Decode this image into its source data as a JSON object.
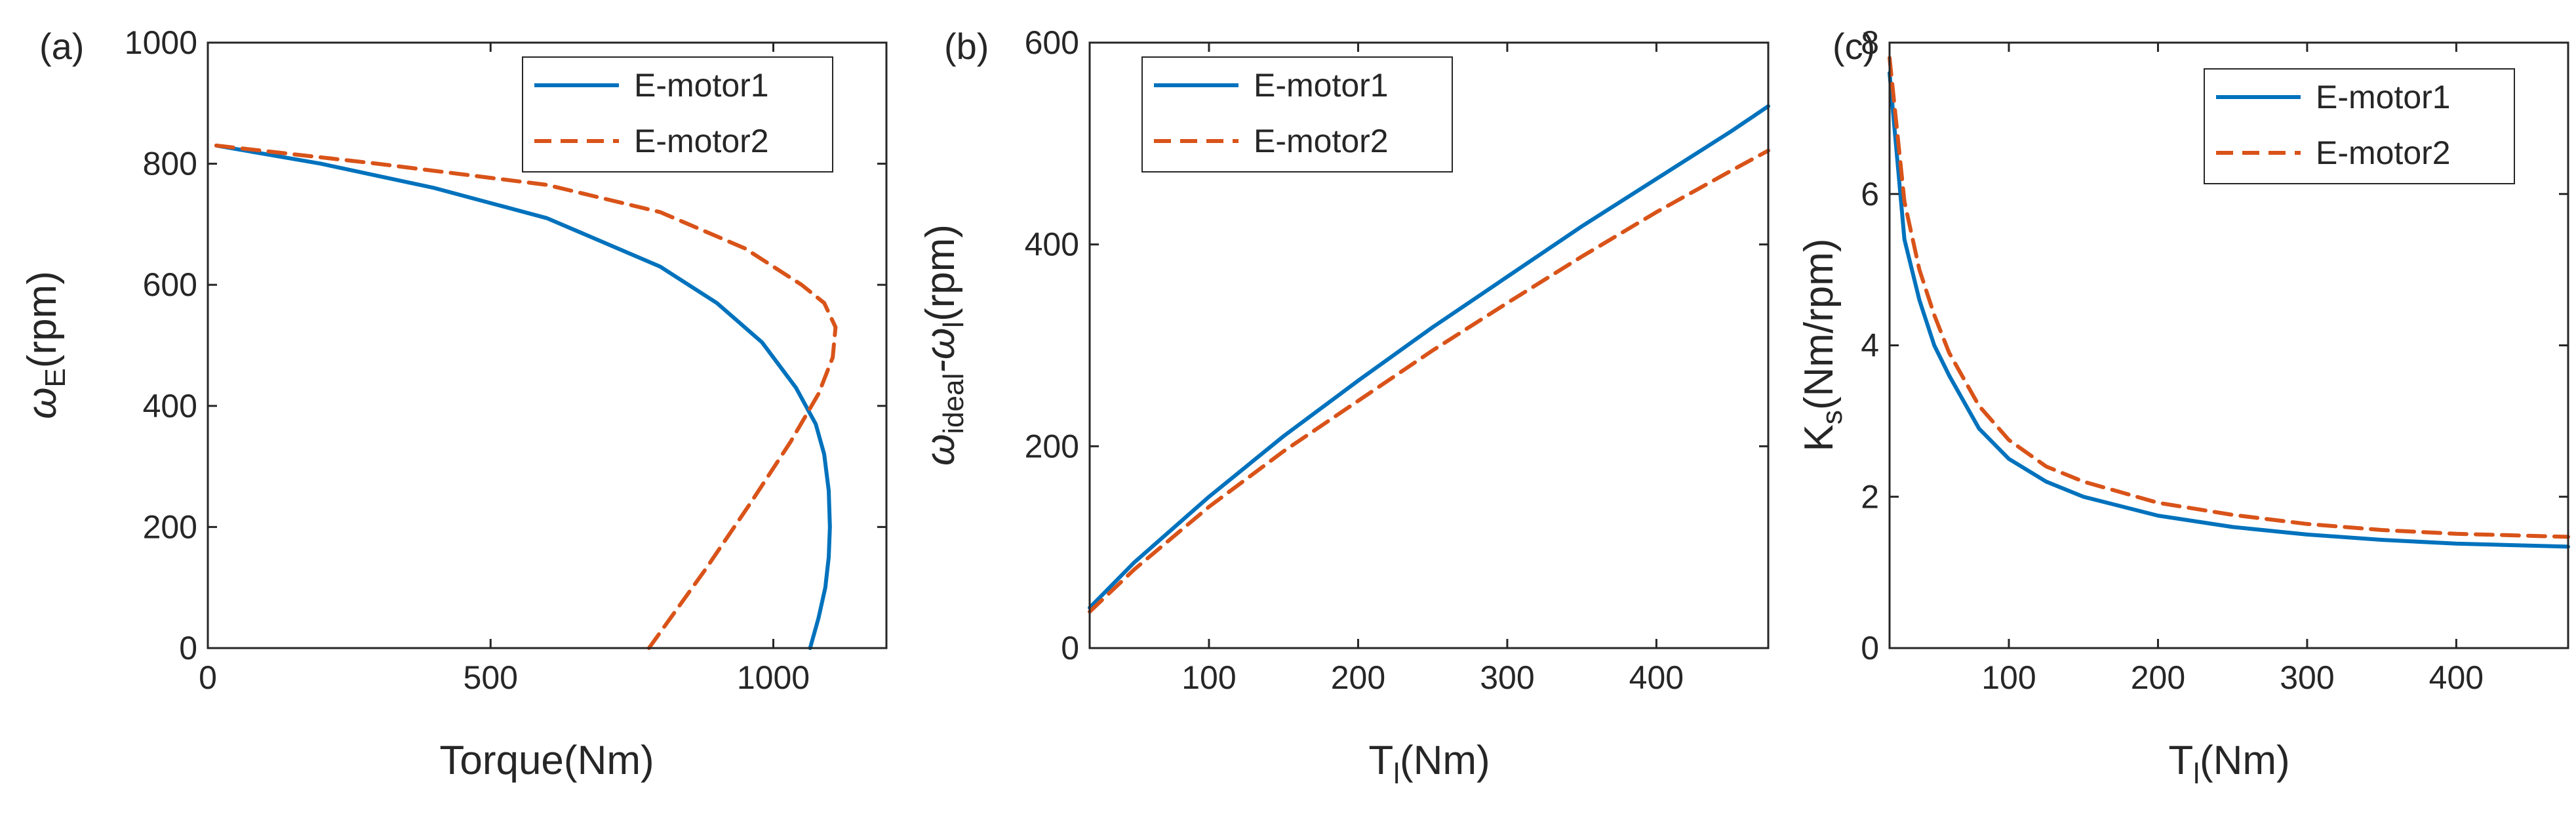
{
  "figure": {
    "series_colors": {
      "E-motor1": "#0072BD",
      "E-motor2": "#D95319"
    },
    "line_styles": {
      "E-motor1": "solid",
      "E-motor2": "dashed"
    }
  },
  "chart_data": [
    {
      "panel": "(a)",
      "type": "line",
      "xlabel": "Torque(Nm)",
      "ylabel_main": "ω",
      "ylabel_sub": "E",
      "ylabel_rest": "(rpm)",
      "xlim": [
        0,
        1200
      ],
      "ylim": [
        0,
        1000
      ],
      "xticks": [
        0,
        500,
        1000
      ],
      "yticks": [
        0,
        200,
        400,
        600,
        800,
        1000
      ],
      "legend": [
        "E-motor1",
        "E-motor2"
      ],
      "legend_position": "top-right",
      "series": [
        {
          "name": "E-motor1",
          "x": [
            15,
            200,
            400,
            600,
            800,
            900,
            980,
            1040,
            1075,
            1090,
            1098,
            1100,
            1098,
            1092,
            1080,
            1065
          ],
          "y": [
            830,
            800,
            760,
            710,
            630,
            570,
            505,
            430,
            370,
            320,
            260,
            200,
            150,
            100,
            50,
            0
          ]
        },
        {
          "name": "E-motor2",
          "x": [
            15,
            300,
            600,
            800,
            950,
            1050,
            1090,
            1110,
            1105,
            1080,
            1030,
            960,
            880,
            780
          ],
          "y": [
            830,
            800,
            765,
            720,
            660,
            600,
            570,
            530,
            480,
            420,
            340,
            240,
            130,
            0
          ]
        }
      ]
    },
    {
      "panel": "(b)",
      "type": "line",
      "xlabel_main": "T",
      "xlabel_sub": "l",
      "xlabel_rest": "(Nm)",
      "ylabel_main": "ω",
      "ylabel_sub": "ideal",
      "ylabel_mid": "-ω",
      "ylabel_sub2": "l",
      "ylabel_rest": "(rpm)",
      "xlim": [
        20,
        475
      ],
      "ylim": [
        0,
        600
      ],
      "xticks": [
        100,
        200,
        300,
        400
      ],
      "yticks": [
        0,
        200,
        400,
        600
      ],
      "legend": [
        "E-motor1",
        "E-motor2"
      ],
      "legend_position": "top-left",
      "series": [
        {
          "name": "E-motor1",
          "x": [
            20,
            50,
            100,
            150,
            200,
            250,
            300,
            350,
            400,
            450,
            475
          ],
          "y": [
            40,
            85,
            150,
            210,
            265,
            318,
            368,
            418,
            465,
            512,
            537
          ]
        },
        {
          "name": "E-motor2",
          "x": [
            20,
            50,
            100,
            150,
            200,
            250,
            300,
            350,
            400,
            450,
            475
          ],
          "y": [
            36,
            78,
            140,
            195,
            245,
            295,
            342,
            388,
            432,
            473,
            493
          ]
        }
      ]
    },
    {
      "panel": "(c)",
      "type": "line",
      "xlabel_main": "T",
      "xlabel_sub": "l",
      "xlabel_rest": "(Nm)",
      "ylabel_main": "K",
      "ylabel_sub": "s",
      "ylabel_rest": "(Nm/rpm)",
      "xlim": [
        20,
        475
      ],
      "ylim": [
        0,
        8
      ],
      "xticks": [
        100,
        200,
        300,
        400
      ],
      "yticks": [
        0,
        2,
        4,
        6,
        8
      ],
      "legend": [
        "E-motor1",
        "E-motor2"
      ],
      "legend_position": "top-right",
      "series": [
        {
          "name": "E-motor1",
          "x": [
            20,
            30,
            40,
            50,
            60,
            80,
            100,
            125,
            150,
            200,
            250,
            300,
            350,
            400,
            475
          ],
          "y": [
            7.6,
            5.4,
            4.6,
            4.0,
            3.6,
            2.9,
            2.5,
            2.2,
            2.0,
            1.75,
            1.6,
            1.5,
            1.43,
            1.38,
            1.34
          ]
        },
        {
          "name": "E-motor2",
          "x": [
            20,
            30,
            40,
            50,
            60,
            80,
            100,
            125,
            150,
            200,
            250,
            300,
            350,
            400,
            475
          ],
          "y": [
            7.8,
            5.9,
            5.0,
            4.4,
            3.9,
            3.2,
            2.75,
            2.4,
            2.2,
            1.92,
            1.76,
            1.64,
            1.56,
            1.51,
            1.47
          ]
        }
      ]
    }
  ]
}
